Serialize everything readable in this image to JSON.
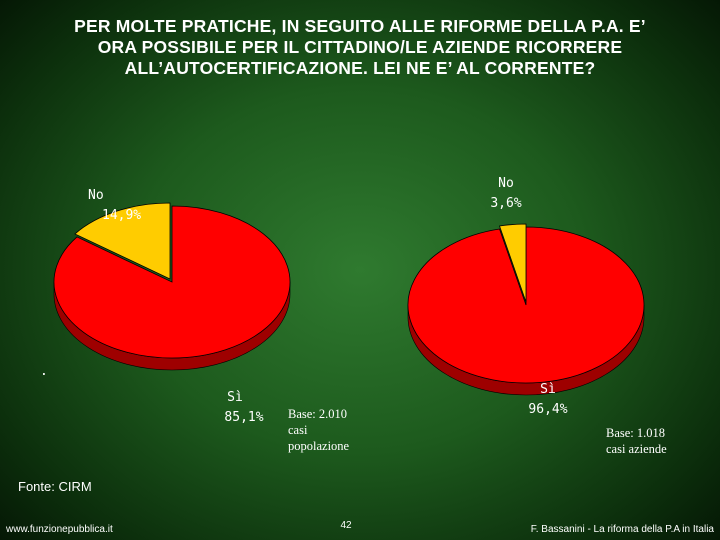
{
  "title_lines": [
    "PER MOLTE PRATICHE, IN SEGUITO ALLE RIFORME DELLA P.A. E’",
    "ORA POSSIBILE PER IL CITTADINO/LE AZIENDE RICORRERE",
    "ALL’AUTOCERTIFICAZIONE. LEI NE E’ AL CORRENTE?"
  ],
  "chart_data": [
    {
      "type": "pie",
      "slices": [
        {
          "label": "Sì",
          "value": 85.1,
          "value_text": "85,1%",
          "color": "#ff0000"
        },
        {
          "label": "No",
          "value": 14.9,
          "value_text": "14,9%",
          "color": "#ffcc00"
        }
      ],
      "base_note": [
        "Base: 2.010",
        "casi",
        "popolazione"
      ]
    },
    {
      "type": "pie",
      "slices": [
        {
          "label": "Sì",
          "value": 96.4,
          "value_text": "96,4%",
          "color": "#ff0000"
        },
        {
          "label": "No",
          "value": 3.6,
          "value_text": "3,6%",
          "color": "#ffcc00"
        }
      ],
      "base_note": [
        "Base: 1.018",
        "casi aziende"
      ]
    }
  ],
  "stray_mark": ".",
  "source": "Fonte: CIRM",
  "footer": {
    "left": "www.funzionepubblica.it",
    "page": "42",
    "right": "F. Bassanini - La riforma della P.A in Italia"
  }
}
